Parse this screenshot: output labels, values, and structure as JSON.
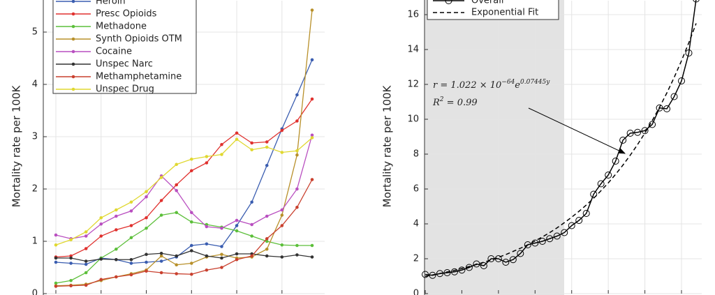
{
  "chart_data": [
    {
      "type": "line",
      "y_label": "Mortality rate per 100K",
      "categories": [
        null,
        null,
        null,
        null,
        null,
        null,
        null,
        null,
        null,
        null,
        null,
        null,
        null,
        null,
        null,
        null,
        null,
        null
      ],
      "ylim": [
        0,
        5.6
      ],
      "yticks": [
        0,
        1,
        2,
        3,
        4,
        5
      ],
      "grid": true,
      "legend": "upper left",
      "series": [
        {
          "name": "Heroin",
          "color": "#3a5db0",
          "values": [
            0.6,
            0.58,
            0.56,
            0.68,
            0.65,
            0.58,
            0.6,
            0.62,
            0.7,
            0.92,
            0.95,
            0.9,
            1.3,
            1.75,
            2.45,
            3.15,
            3.8,
            4.47
          ]
        },
        {
          "name": "Presc Opioids",
          "color": "#e0312e",
          "values": [
            0.7,
            0.72,
            0.86,
            1.1,
            1.22,
            1.3,
            1.45,
            1.78,
            2.08,
            2.35,
            2.5,
            2.85,
            3.07,
            2.88,
            2.9,
            3.12,
            3.3,
            3.72
          ]
        },
        {
          "name": "Methadone",
          "color": "#5cbf3a",
          "values": [
            0.2,
            0.25,
            0.4,
            0.68,
            0.85,
            1.07,
            1.25,
            1.5,
            1.55,
            1.37,
            1.32,
            1.27,
            1.2,
            1.1,
            1.0,
            0.93,
            0.92,
            0.92
          ]
        },
        {
          "name": "Synth Opioids OTM",
          "color": "#b8902a",
          "values": [
            0.15,
            0.16,
            0.18,
            0.25,
            0.32,
            0.38,
            0.45,
            0.72,
            0.55,
            0.58,
            0.7,
            0.75,
            0.68,
            0.7,
            0.85,
            1.5,
            2.65,
            5.42
          ]
        },
        {
          "name": "Cocaine",
          "color": "#b94fc0",
          "values": [
            1.12,
            1.05,
            1.1,
            1.33,
            1.48,
            1.58,
            1.85,
            2.25,
            1.97,
            1.55,
            1.28,
            1.25,
            1.4,
            1.32,
            1.48,
            1.6,
            2.0,
            3.03
          ]
        },
        {
          "name": "Unspec Narc",
          "color": "#333333",
          "values": [
            0.68,
            0.68,
            0.62,
            0.66,
            0.65,
            0.65,
            0.75,
            0.77,
            0.72,
            0.82,
            0.72,
            0.68,
            0.76,
            0.76,
            0.72,
            0.7,
            0.74,
            0.7
          ]
        },
        {
          "name": "Methamphetamine",
          "color": "#c9402e",
          "values": [
            0.14,
            0.15,
            0.16,
            0.27,
            0.32,
            0.36,
            0.43,
            0.4,
            0.38,
            0.37,
            0.45,
            0.5,
            0.65,
            0.72,
            1.05,
            1.3,
            1.65,
            2.18
          ]
        },
        {
          "name": "Unspec Drug",
          "color": "#e0d830",
          "values": [
            0.93,
            1.03,
            1.18,
            1.45,
            1.6,
            1.75,
            1.95,
            2.22,
            2.47,
            2.57,
            2.62,
            2.66,
            2.95,
            2.75,
            2.8,
            2.7,
            2.73,
            2.98
          ]
        }
      ]
    },
    {
      "type": "line",
      "y_label": "Mortality rate per 100K",
      "categories": [
        null,
        null,
        null,
        null,
        null,
        null,
        null,
        null,
        null,
        null,
        null,
        null,
        null,
        null,
        null,
        null,
        null,
        null,
        null,
        null,
        null,
        null,
        null,
        null,
        null,
        null,
        null,
        null,
        null,
        null,
        null,
        null,
        null,
        null,
        null,
        null,
        null,
        null
      ],
      "ylim": [
        0,
        16.8
      ],
      "yticks": [
        0,
        2,
        4,
        6,
        8,
        10,
        12,
        14,
        16
      ],
      "grid": true,
      "legend": "upper left",
      "equation": [
        "r = 1.022 × 10",
        "−64",
        "e",
        "0.07445y"
      ],
      "r_squared": [
        "R",
        "2",
        " = 0.99"
      ],
      "series": [
        {
          "name": "Overall",
          "color": "#000000",
          "values": [
            1.1,
            1.05,
            1.15,
            1.2,
            1.25,
            1.35,
            1.5,
            1.7,
            1.6,
            2.0,
            2.0,
            1.8,
            1.95,
            2.3,
            2.8,
            2.9,
            3.0,
            3.15,
            3.3,
            3.5,
            3.9,
            4.2,
            4.6,
            5.7,
            6.3,
            6.8,
            7.6,
            8.8,
            9.2,
            9.25,
            9.35,
            9.7,
            10.65,
            10.6,
            11.3,
            12.2,
            13.8,
            16.9
          ]
        },
        {
          "name": "Exponential Fit",
          "color": "#000000",
          "dashed": true,
          "values": [
            0.99,
            1.07,
            1.15,
            1.24,
            1.33,
            1.44,
            1.55,
            1.67,
            1.8,
            1.93,
            2.08,
            2.24,
            2.42,
            2.6,
            2.8,
            3.02,
            3.25,
            3.5,
            3.77,
            4.07,
            4.38,
            4.72,
            5.08,
            5.47,
            5.9,
            6.35,
            6.84,
            7.37,
            7.94,
            8.55,
            9.21,
            9.92,
            10.69,
            11.51,
            12.4,
            13.36,
            14.39,
            15.5
          ]
        }
      ]
    }
  ]
}
